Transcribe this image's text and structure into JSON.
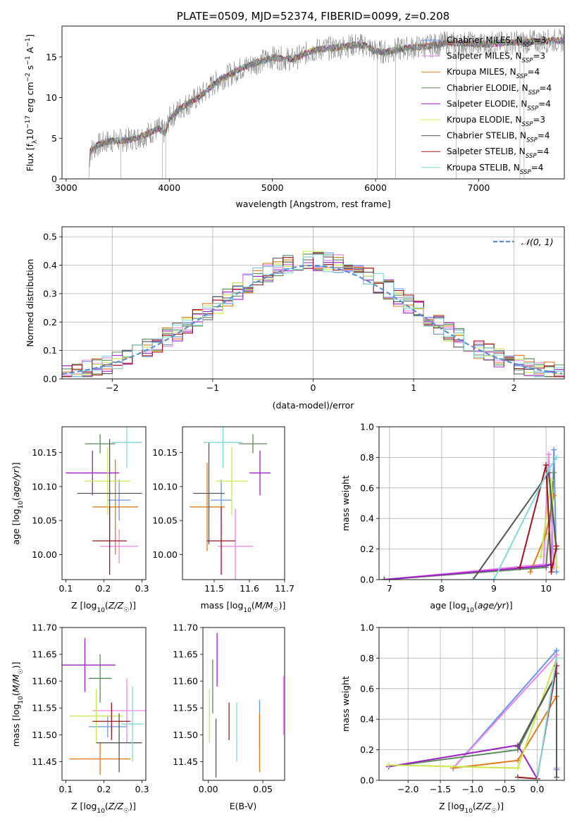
{
  "colors": {
    "chabrier_miles": "#6495ED",
    "salpeter_miles": "#EE82EE",
    "kroupa_miles": "#E07B1E",
    "chabrier_elodie": "#5B8C5A",
    "salpeter_elodie": "#A020C8",
    "kroupa_elodie": "#C8E84E",
    "chabrier_stelib": "#555555",
    "salpeter_stelib": "#A0141E",
    "kroupa_stelib": "#80D8DC",
    "normal": "#5B8DD6",
    "grid": "#b0b0b0"
  },
  "chart_data": [
    {
      "id": "spectrum",
      "type": "line",
      "title": "PLATE=0509, MJD=52374, FIBERID=0099, z=0.208",
      "xlabel": "wavelength [Angstrom, rest frame]",
      "ylabel": "Flux [f_λ 10^-17 erg cm^-2 s^-1 A^-1]",
      "xlim": [
        2960,
        7830
      ],
      "ylim": [
        0,
        18.8
      ],
      "xticks": [
        3000,
        4000,
        5000,
        6000,
        7000
      ],
      "yticks": [
        0,
        5,
        10,
        15
      ],
      "grid": false,
      "legend_position": "right",
      "continuum": [
        [
          3220,
          0
        ],
        [
          3230,
          3.4
        ],
        [
          3300,
          4.1
        ],
        [
          3400,
          4.6
        ],
        [
          3500,
          4.7
        ],
        [
          3600,
          4.8
        ],
        [
          3700,
          5.1
        ],
        [
          3800,
          5.6
        ],
        [
          3900,
          6.2
        ],
        [
          3960,
          5.6
        ],
        [
          4000,
          7.4
        ],
        [
          4100,
          8.6
        ],
        [
          4200,
          9.4
        ],
        [
          4300,
          10.2
        ],
        [
          4400,
          11.3
        ],
        [
          4500,
          12.3
        ],
        [
          4600,
          12.9
        ],
        [
          4700,
          13.6
        ],
        [
          4800,
          14.1
        ],
        [
          4900,
          14.5
        ],
        [
          5000,
          14.9
        ],
        [
          5100,
          14.8
        ],
        [
          5200,
          14.7
        ],
        [
          5300,
          15.3
        ],
        [
          5400,
          15.8
        ],
        [
          5500,
          16.0
        ],
        [
          5600,
          16.1
        ],
        [
          5700,
          16.3
        ],
        [
          5800,
          16.5
        ],
        [
          5900,
          16.4
        ],
        [
          6000,
          15.7
        ],
        [
          6100,
          15.6
        ],
        [
          6200,
          15.9
        ],
        [
          6300,
          16.1
        ],
        [
          6400,
          16.2
        ],
        [
          6500,
          16.3
        ],
        [
          6600,
          16.5
        ],
        [
          6700,
          16.8
        ],
        [
          6800,
          16.6
        ],
        [
          6900,
          16.7
        ],
        [
          7000,
          16.6
        ],
        [
          7100,
          16.6
        ],
        [
          7200,
          16.7
        ],
        [
          7300,
          16.8
        ],
        [
          7400,
          16.8
        ],
        [
          7500,
          16.9
        ],
        [
          7600,
          16.9
        ],
        [
          7700,
          17.0
        ],
        [
          7830,
          17.0
        ]
      ],
      "spikes": [
        3530,
        3935,
        3965,
        6015,
        6195,
        6780,
        7400,
        7440
      ],
      "series": [
        {
          "name": "Chabrier MILES, N_SSP=3",
          "color_key": "chabrier_miles",
          "label_main": "Chabrier MILES, N",
          "label_sub": "SSP",
          "label_tail": "=3"
        },
        {
          "name": "Salpeter MILES, N_SSP=3",
          "color_key": "salpeter_miles",
          "label_main": "Salpeter MILES, N",
          "label_sub": "SSP",
          "label_tail": "=3"
        },
        {
          "name": "Kroupa MILES, N_SSP=4",
          "color_key": "kroupa_miles",
          "label_main": "Kroupa MILES, N",
          "label_sub": "SSP",
          "label_tail": "=4"
        },
        {
          "name": "Chabrier ELODIE, N_SSP=4",
          "color_key": "chabrier_elodie",
          "label_main": "Chabrier ELODIE, N",
          "label_sub": "SSP",
          "label_tail": "=4"
        },
        {
          "name": "Salpeter ELODIE, N_SSP=4",
          "color_key": "salpeter_elodie",
          "label_main": "Salpeter ELODIE, N",
          "label_sub": "SSP",
          "label_tail": "=4"
        },
        {
          "name": "Kroupa ELODIE, N_SSP=3",
          "color_key": "kroupa_elodie",
          "label_main": "Kroupa ELODIE, N",
          "label_sub": "SSP",
          "label_tail": "=3"
        },
        {
          "name": "Chabrier STELIB, N_SSP=4",
          "color_key": "chabrier_stelib",
          "label_main": "Chabrier STELIB, N",
          "label_sub": "SSP",
          "label_tail": "=4"
        },
        {
          "name": "Salpeter STELIB, N_SSP=4",
          "color_key": "salpeter_stelib",
          "label_main": "Salpeter STELIB, N",
          "label_sub": "SSP",
          "label_tail": "=4"
        },
        {
          "name": "Kroupa STELIB, N_SSP=4",
          "color_key": "kroupa_stelib",
          "label_main": "Kroupa STELIB, N",
          "label_sub": "SSP",
          "label_tail": "=4"
        }
      ]
    },
    {
      "id": "residuals",
      "type": "histogram",
      "xlabel": "(data-model)/error",
      "ylabel": "Normed distribution",
      "xlim": [
        -2.5,
        2.5
      ],
      "ylim": [
        0,
        0.535
      ],
      "xticks": [
        -2,
        -1,
        0,
        1,
        2
      ],
      "yticks": [
        0.0,
        0.1,
        0.2,
        0.3,
        0.4,
        0.5
      ],
      "grid": true,
      "legend_position": "top-right",
      "legend_label": "𝒩(0, 1)",
      "bin_width": 0.1,
      "bins_start": -2.5
    },
    {
      "id": "age_vs_z",
      "type": "errorbar",
      "xlabel": "Z [log10(Z/Z☉)]",
      "ylabel": "age  [log10(age/yr)]",
      "xlim": [
        0.09,
        0.31
      ],
      "ylim": [
        9.963,
        10.188
      ],
      "xticks": [
        0.1,
        0.2,
        0.3
      ],
      "yticks": [
        10.0,
        10.05,
        10.1,
        10.15
      ],
      "points": [
        {
          "color_key": "chabrier_miles",
          "x": 0.24,
          "xerr": 0.03,
          "y": 10.08,
          "yerr": 0.03
        },
        {
          "color_key": "salpeter_miles",
          "x": 0.24,
          "xerr": 0.05,
          "y": 10.012,
          "yerr": 0.025
        },
        {
          "color_key": "kroupa_miles",
          "x": 0.23,
          "xerr": 0.06,
          "y": 10.07,
          "yerr": 0.07
        },
        {
          "color_key": "chabrier_elodie",
          "x": 0.19,
          "xerr": 0.04,
          "y": 10.163,
          "yerr": 0.014
        },
        {
          "color_key": "salpeter_elodie",
          "x": 0.17,
          "xerr": 0.07,
          "y": 10.12,
          "yerr": 0.033
        },
        {
          "color_key": "kroupa_elodie",
          "x": 0.21,
          "xerr": 0.06,
          "y": 10.108,
          "yerr": 0.05
        },
        {
          "color_key": "chabrier_stelib",
          "x": 0.215,
          "xerr": 0.085,
          "y": 10.09,
          "yerr": 0.08
        },
        {
          "color_key": "salpeter_stelib",
          "x": 0.215,
          "xerr": 0.045,
          "y": 10.02,
          "yerr": 0.05
        },
        {
          "color_key": "kroupa_stelib",
          "x": 0.26,
          "xerr": 0.04,
          "y": 10.165,
          "yerr": 0.038
        }
      ]
    },
    {
      "id": "age_vs_mass",
      "type": "errorbar",
      "xlabel": "mass [log10(M/M☉)]",
      "ylabel": "",
      "xlim": [
        11.41,
        11.7
      ],
      "ylim": [
        9.963,
        10.188
      ],
      "xticks": [
        11.5,
        11.6,
        11.7
      ],
      "yticks": [
        10.0,
        10.05,
        10.1,
        10.15
      ],
      "points": [
        {
          "color_key": "chabrier_miles",
          "x": 11.52,
          "xerr": 0.03,
          "y": 10.08,
          "yerr": 0.03
        },
        {
          "color_key": "salpeter_miles",
          "x": 11.56,
          "xerr": 0.05,
          "y": 10.012,
          "yerr": 0.055
        },
        {
          "color_key": "kroupa_miles",
          "x": 11.48,
          "xerr": 0.05,
          "y": 10.07,
          "yerr": 0.065
        },
        {
          "color_key": "chabrier_elodie",
          "x": 11.61,
          "xerr": 0.04,
          "y": 10.163,
          "yerr": 0.014
        },
        {
          "color_key": "salpeter_elodie",
          "x": 11.63,
          "xerr": 0.03,
          "y": 10.12,
          "yerr": 0.033
        },
        {
          "color_key": "kroupa_elodie",
          "x": 11.55,
          "xerr": 0.045,
          "y": 10.108,
          "yerr": 0.05
        },
        {
          "color_key": "chabrier_stelib",
          "x": 11.485,
          "xerr": 0.045,
          "y": 10.09,
          "yerr": 0.075
        },
        {
          "color_key": "salpeter_stelib",
          "x": 11.52,
          "xerr": 0.04,
          "y": 10.02,
          "yerr": 0.05
        },
        {
          "color_key": "kroupa_stelib",
          "x": 11.525,
          "xerr": 0.055,
          "y": 10.165,
          "yerr": 0.038
        }
      ]
    },
    {
      "id": "mass_weight_vs_age",
      "type": "line",
      "xlabel": "age  [log10(age/yr)]",
      "ylabel": "mass weight",
      "xlim": [
        6.8,
        10.35
      ],
      "ylim": [
        0,
        1.0
      ],
      "xticks": [
        7,
        8,
        9,
        10
      ],
      "yticks": [
        0.0,
        0.2,
        0.4,
        0.6,
        0.8,
        1.0
      ],
      "grid": true,
      "series": [
        {
          "color_key": "chabrier_miles",
          "x": [
            6.9,
            10.1,
            10.15,
            10.2
          ],
          "y": [
            0.0,
            0.1,
            0.85,
            0.05
          ]
        },
        {
          "color_key": "salpeter_miles",
          "x": [
            6.9,
            9.95,
            10.05,
            10.15
          ],
          "y": [
            0.0,
            0.1,
            0.82,
            0.08
          ]
        },
        {
          "color_key": "kroupa_miles",
          "x": [
            9.7,
            10.0,
            10.15
          ],
          "y": [
            0.05,
            0.3,
            0.55
          ]
        },
        {
          "color_key": "chabrier_elodie",
          "x": [
            6.9,
            10.0,
            10.15
          ],
          "y": [
            0.0,
            0.08,
            0.7
          ]
        },
        {
          "color_key": "salpeter_elodie",
          "x": [
            6.9,
            10.0,
            10.1
          ],
          "y": [
            0.0,
            0.09,
            0.1
          ]
        },
        {
          "color_key": "kroupa_elodie",
          "x": [
            9.9,
            10.1,
            10.2
          ],
          "y": [
            0.15,
            0.65,
            0.08
          ]
        },
        {
          "color_key": "chabrier_stelib",
          "x": [
            8.6,
            10.05,
            10.2
          ],
          "y": [
            0.0,
            0.7,
            0.2
          ]
        },
        {
          "color_key": "salpeter_stelib",
          "x": [
            9.5,
            10.0,
            10.1,
            10.2
          ],
          "y": [
            0.08,
            0.75,
            0.05,
            0.22
          ]
        },
        {
          "color_key": "kroupa_stelib",
          "x": [
            8.6,
            9.0,
            10.05,
            10.2
          ],
          "y": [
            0.0,
            0.0,
            0.72,
            0.8
          ]
        }
      ]
    },
    {
      "id": "mass_vs_z",
      "type": "errorbar",
      "xlabel": "Z [log10(Z/Z☉)]",
      "ylabel": "mass [log10(M/M☉)]",
      "xlim": [
        0.09,
        0.31
      ],
      "ylim": [
        11.415,
        11.7
      ],
      "xticks": [
        0.1,
        0.2,
        0.3
      ],
      "yticks": [
        11.45,
        11.5,
        11.55,
        11.6,
        11.65,
        11.7
      ],
      "points": [
        {
          "color_key": "chabrier_miles",
          "x": 0.21,
          "xerr": 0.05,
          "y": 11.515,
          "yerr": 0.02
        },
        {
          "color_key": "salpeter_miles",
          "x": 0.26,
          "xerr": 0.09,
          "y": 11.545,
          "yerr": 0.06
        },
        {
          "color_key": "kroupa_miles",
          "x": 0.19,
          "xerr": 0.08,
          "y": 11.455,
          "yerr": 0.03
        },
        {
          "color_key": "chabrier_elodie",
          "x": 0.19,
          "xerr": 0.03,
          "y": 11.605,
          "yerr": 0.045
        },
        {
          "color_key": "salpeter_elodie",
          "x": 0.15,
          "xerr": 0.08,
          "y": 11.63,
          "yerr": 0.05
        },
        {
          "color_key": "kroupa_elodie",
          "x": 0.18,
          "xerr": 0.07,
          "y": 11.535,
          "yerr": 0.05
        },
        {
          "color_key": "chabrier_stelib",
          "x": 0.24,
          "xerr": 0.06,
          "y": 11.485,
          "yerr": 0.055
        },
        {
          "color_key": "salpeter_stelib",
          "x": 0.22,
          "xerr": 0.05,
          "y": 11.525,
          "yerr": 0.035
        },
        {
          "color_key": "kroupa_stelib",
          "x": 0.275,
          "xerr": 0.03,
          "y": 11.52,
          "yerr": 0.07
        }
      ]
    },
    {
      "id": "mass_vs_ebv",
      "type": "errorbar",
      "xlabel": "E(B-V)",
      "ylabel": "",
      "xlim": [
        -0.005,
        0.07
      ],
      "ylim": [
        11.415,
        11.7
      ],
      "xticks": [
        0.0,
        0.05
      ],
      "yticks": [
        11.45,
        11.5,
        11.55,
        11.6,
        11.65,
        11.7
      ],
      "points": [
        {
          "color_key": "chabrier_miles",
          "x": 0.047,
          "xerr": 0,
          "y": 11.52,
          "yerr": 0.045
        },
        {
          "color_key": "salpeter_miles",
          "x": 0.069,
          "xerr": 0,
          "y": 11.555,
          "yerr": 0.055
        },
        {
          "color_key": "kroupa_miles",
          "x": 0.047,
          "xerr": 0,
          "y": 11.485,
          "yerr": 0.055
        },
        {
          "color_key": "chabrier_elodie",
          "x": 0.004,
          "xerr": 0,
          "y": 11.59,
          "yerr": 0.05
        },
        {
          "color_key": "salpeter_elodie",
          "x": 0.008,
          "xerr": 0,
          "y": 11.64,
          "yerr": 0.05
        },
        {
          "color_key": "kroupa_elodie",
          "x": 0.001,
          "xerr": 0,
          "y": 11.535,
          "yerr": 0.05
        },
        {
          "color_key": "chabrier_stelib",
          "x": 0.007,
          "xerr": 0,
          "y": 11.475,
          "yerr": 0.055
        },
        {
          "color_key": "salpeter_stelib",
          "x": 0.019,
          "xerr": 0,
          "y": 11.525,
          "yerr": 0.035
        },
        {
          "color_key": "kroupa_stelib",
          "x": 0.026,
          "xerr": 0,
          "y": 11.505,
          "yerr": 0.055
        }
      ]
    },
    {
      "id": "mass_weight_vs_z",
      "type": "line",
      "xlabel": "Z [log10(Z/Z☉)]",
      "ylabel": "mass weight",
      "xlim": [
        -2.45,
        0.42
      ],
      "ylim": [
        0,
        1.0
      ],
      "xticks": [
        -2.0,
        -1.5,
        -1.0,
        -0.5,
        0.0
      ],
      "yticks": [
        0.0,
        0.2,
        0.4,
        0.6,
        0.8,
        1.0
      ],
      "grid": true,
      "series": [
        {
          "color_key": "chabrier_miles",
          "x": [
            -1.3,
            0.3,
            0.3
          ],
          "y": [
            0.08,
            0.85,
            0.07
          ]
        },
        {
          "color_key": "salpeter_miles",
          "x": [
            -1.3,
            0.3,
            0.3
          ],
          "y": [
            0.08,
            0.82,
            0.08
          ]
        },
        {
          "color_key": "kroupa_miles",
          "x": [
            -1.3,
            -0.3,
            0.3
          ],
          "y": [
            0.08,
            0.13,
            0.55
          ]
        },
        {
          "color_key": "chabrier_elodie",
          "x": [
            -2.3,
            -0.3,
            0.3
          ],
          "y": [
            0.09,
            0.2,
            0.7
          ]
        },
        {
          "color_key": "salpeter_elodie",
          "x": [
            -2.3,
            -0.3,
            0.0
          ],
          "y": [
            0.09,
            0.23,
            0.01
          ]
        },
        {
          "color_key": "kroupa_elodie",
          "x": [
            -2.3,
            -0.3,
            0.3
          ],
          "y": [
            0.1,
            0.08,
            0.8
          ]
        },
        {
          "color_key": "chabrier_stelib",
          "x": [
            -0.3,
            0.3,
            0.3
          ],
          "y": [
            0.22,
            0.7,
            0.02
          ]
        },
        {
          "color_key": "salpeter_stelib",
          "x": [
            -0.3,
            0.0,
            0.3
          ],
          "y": [
            0.02,
            0.01,
            0.75
          ]
        },
        {
          "color_key": "kroupa_stelib",
          "x": [
            -0.3,
            0.0,
            0.3
          ],
          "y": [
            0.0,
            0.0,
            0.8
          ]
        }
      ]
    }
  ]
}
